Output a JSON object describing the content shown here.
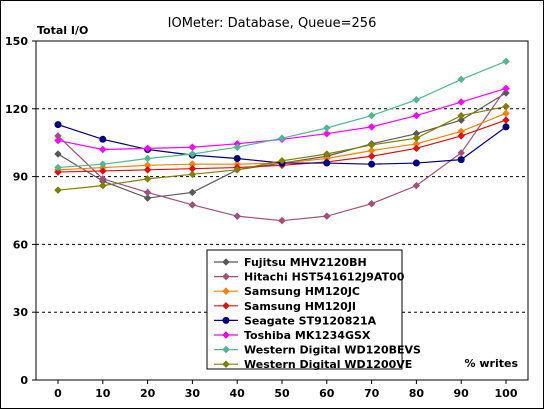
{
  "chart_data": {
    "type": "line",
    "title": "IOMeter: Database, Queue=256",
    "ylabel": "Total I/O",
    "xlabel": "% writes",
    "x": [
      0,
      10,
      20,
      30,
      40,
      50,
      60,
      70,
      80,
      90,
      100
    ],
    "ylim": [
      0,
      150
    ],
    "yticks": [
      0,
      30,
      60,
      90,
      120,
      150
    ],
    "grid": "horizontal dashed",
    "legend_position": "bottom-center",
    "series": [
      {
        "name": "Fujitsu MHV2120BH",
        "color": "#595959",
        "marker": "diamond",
        "values": [
          100,
          88,
          80.5,
          83,
          93,
          96,
          99,
          104.5,
          109,
          115,
          127
        ]
      },
      {
        "name": "Hitachi HST541612J9AT00",
        "color": "#a0507a",
        "marker": "diamond",
        "values": [
          108,
          89,
          83,
          77.5,
          72.5,
          70.5,
          72.5,
          78,
          86,
          100.5,
          129
        ]
      },
      {
        "name": "Samsung HM120JC",
        "color": "#ff7f00",
        "marker": "diamond",
        "values": [
          93,
          94,
          95,
          95.5,
          95.5,
          96,
          98,
          101.5,
          104.5,
          110,
          118
        ]
      },
      {
        "name": "Samsung HM120JI",
        "color": "#e01010",
        "marker": "diamond",
        "values": [
          92,
          92.5,
          93,
          93.5,
          94,
          95,
          96.5,
          99,
          102.5,
          108,
          115
        ]
      },
      {
        "name": "Seagate ST9120821A",
        "color": "#000080",
        "marker": "circle",
        "values": [
          113,
          106.5,
          102,
          99.5,
          98,
          96,
          96,
          95.5,
          96,
          97.5,
          112
        ]
      },
      {
        "name": "Toshiba MK1234GSX",
        "color": "#ff00ff",
        "marker": "diamond",
        "values": [
          106,
          102,
          102.5,
          103,
          104.5,
          106.5,
          109,
          112,
          117,
          123,
          129
        ]
      },
      {
        "name": "Western Digital WD120BEVS",
        "color": "#50b890",
        "marker": "diamond",
        "values": [
          94,
          95.5,
          98,
          100,
          103,
          107,
          111.5,
          117,
          124,
          133,
          141
        ]
      },
      {
        "name": "Western Digital WD1200VE",
        "color": "#808000",
        "marker": "diamond",
        "values": [
          84,
          86,
          89,
          91,
          93,
          97,
          100,
          104,
          107,
          117,
          121
        ]
      }
    ]
  }
}
